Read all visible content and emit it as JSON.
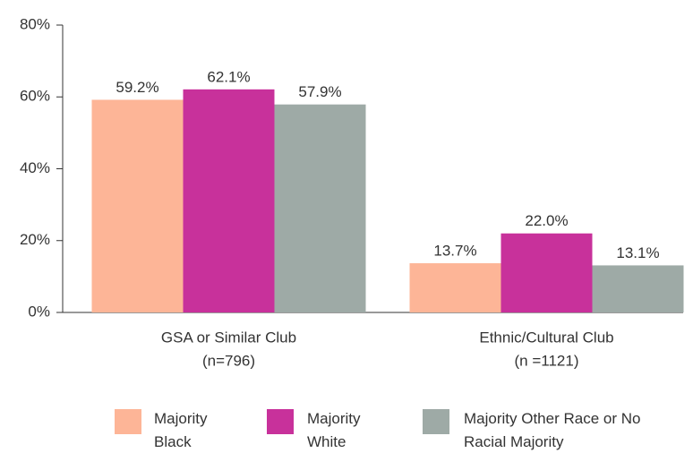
{
  "chart_data": {
    "type": "bar",
    "categories": [
      [
        "GSA or Similar Club",
        "(n=796)"
      ],
      [
        "Ethnic/Cultural Club",
        "(n =1121)"
      ]
    ],
    "series": [
      {
        "name": "Majority Black",
        "color": "#fdb597",
        "values": [
          59.2,
          13.7
        ],
        "value_labels": [
          "59.2%",
          "13.7%"
        ]
      },
      {
        "name": "Majority White",
        "color": "#c8319b",
        "values": [
          62.1,
          22.0
        ],
        "value_labels": [
          "62.1%",
          "22.0%"
        ]
      },
      {
        "name": "Majority Other Race or No Racial Majority",
        "color": "#9eaaa6",
        "values": [
          57.9,
          13.1
        ],
        "value_labels": [
          "57.9%",
          "13.1%"
        ]
      }
    ],
    "ylim": [
      0,
      80
    ],
    "yticks": [
      {
        "value": 0,
        "label": "0%"
      },
      {
        "value": 20,
        "label": "20%"
      },
      {
        "value": 40,
        "label": "40%"
      },
      {
        "value": 60,
        "label": "60%"
      },
      {
        "value": 80,
        "label": "80%"
      }
    ],
    "grid": false
  }
}
